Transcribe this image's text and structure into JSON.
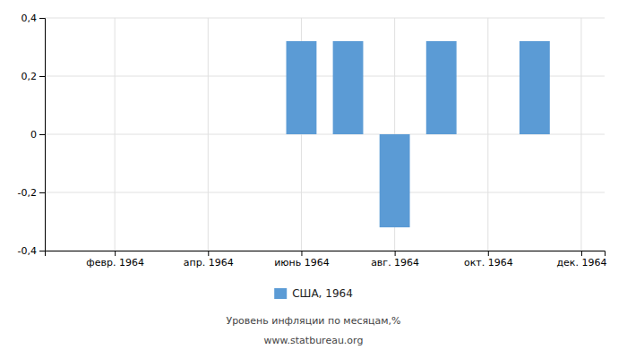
{
  "chart_data": {
    "type": "bar",
    "x": [
      1,
      2,
      3,
      4,
      5,
      6,
      7,
      8,
      9,
      10,
      11,
      12
    ],
    "series": [
      {
        "name": "США, 1964",
        "color": "#5B9BD5",
        "values": [
          0.0,
          0.0,
          0.0,
          0.0,
          0.0,
          0.32,
          0.32,
          -0.32,
          0.32,
          0.0,
          0.32,
          0.0
        ]
      }
    ],
    "xlim": [
      0.5,
      12.5
    ],
    "xticks": [
      {
        "value": 2,
        "label": "февр. 1964"
      },
      {
        "value": 4,
        "label": "апр. 1964"
      },
      {
        "value": 6,
        "label": "июнь 1964"
      },
      {
        "value": 8,
        "label": "авг. 1964"
      },
      {
        "value": 10,
        "label": "окт. 1964"
      },
      {
        "value": 12,
        "label": "дек. 1964"
      }
    ],
    "ylim": [
      -0.4,
      0.4
    ],
    "yticks": [
      {
        "value": -0.4,
        "label": "-0,4"
      },
      {
        "value": -0.2,
        "label": "-0,2"
      },
      0,
      {
        "value": 0.2,
        "label": "0,2"
      },
      {
        "value": 0.4,
        "label": "0,4"
      }
    ],
    "grid": true,
    "legend": "bottom",
    "annotations": [
      "Уровень инфляции по месяцам,%",
      "www.statbureau.org"
    ]
  }
}
